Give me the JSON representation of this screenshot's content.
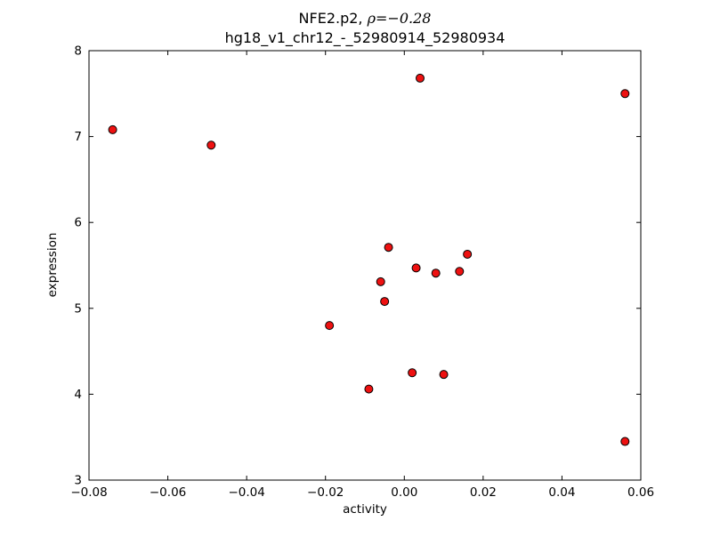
{
  "chart_data": {
    "type": "scatter",
    "title_line1_prefix": "NFE2.p2, ",
    "title_line1_math": "ρ=−0.28",
    "title_line2": "hg18_v1_chr12_-_52980914_52980934",
    "xlabel": "activity",
    "ylabel": "expression",
    "xlim": [
      -0.08,
      0.06
    ],
    "ylim": [
      3,
      8
    ],
    "xticks": {
      "values": [
        -0.08,
        -0.06,
        -0.04,
        -0.02,
        0.0,
        0.02,
        0.04,
        0.06
      ],
      "labels": [
        "−0.08",
        "−0.06",
        "−0.04",
        "−0.02",
        "0.00",
        "0.02",
        "0.04",
        "0.06"
      ]
    },
    "yticks": {
      "values": [
        3,
        4,
        5,
        6,
        7,
        8
      ],
      "labels": [
        "3",
        "4",
        "5",
        "6",
        "7",
        "8"
      ]
    },
    "grid": false,
    "legend": "none",
    "marker": {
      "shape": "circle",
      "fill_color": "#ee1111",
      "edge_color": "#000000",
      "radius_px": 4.5
    },
    "axes_color": "#000000",
    "background_color": "#ffffff",
    "points": [
      [
        -0.074,
        7.08
      ],
      [
        -0.049,
        6.9
      ],
      [
        0.004,
        7.68
      ],
      [
        0.056,
        7.5
      ],
      [
        -0.004,
        5.71
      ],
      [
        0.016,
        5.63
      ],
      [
        0.003,
        5.47
      ],
      [
        0.008,
        5.41
      ],
      [
        0.014,
        5.43
      ],
      [
        -0.006,
        5.31
      ],
      [
        -0.005,
        5.08
      ],
      [
        -0.019,
        4.8
      ],
      [
        0.002,
        4.25
      ],
      [
        0.01,
        4.23
      ],
      [
        -0.009,
        4.06
      ],
      [
        0.056,
        3.45
      ]
    ]
  }
}
